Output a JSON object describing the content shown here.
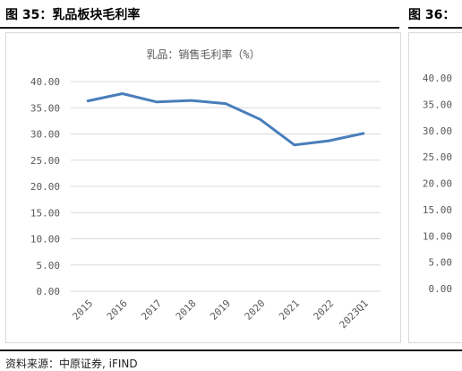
{
  "figure_left": {
    "title": "图 35：乳品板块毛利率"
  },
  "figure_right": {
    "title": "图 36：",
    "yticks": [
      "40.00",
      "35.00",
      "30.00",
      "25.00",
      "20.00",
      "15.00",
      "10.00",
      "5.00",
      "0.00"
    ]
  },
  "source_note": "资料来源：中原证券, iFIND",
  "chart_data": {
    "type": "line",
    "title": "乳品：销售毛利率（%）",
    "categories": [
      "2015",
      "2016",
      "2017",
      "2018",
      "2019",
      "2020",
      "2021",
      "2022",
      "2023Q1"
    ],
    "series": [
      {
        "values": [
          36.3,
          37.7,
          36.1,
          36.4,
          35.8,
          32.8,
          27.9,
          28.7,
          30.1
        ]
      }
    ],
    "ylim": [
      0,
      40
    ],
    "ytick_step": 5,
    "ytick_labels": [
      "40.00",
      "35.00",
      "30.00",
      "25.00",
      "20.00",
      "15.00",
      "10.00",
      "5.00",
      "0.00"
    ],
    "xlabel": "",
    "ylabel": "",
    "grid": true,
    "line_color": "#4a7ebb",
    "grid_color": "#d9d9d9"
  }
}
